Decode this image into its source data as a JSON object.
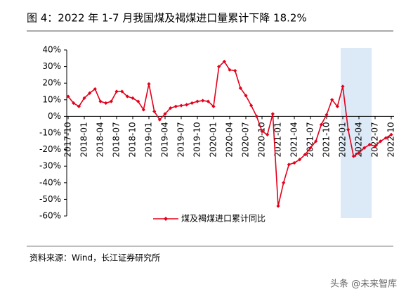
{
  "title": "图 4：2022 年 1-7 月我国煤及褐煤进口量累计下降 18.2%",
  "source": "资料来源：Wind，长江证券研究所",
  "watermark": "头条 @未来智库",
  "chart_data": {
    "type": "line",
    "categories": [
      "2017-10",
      null,
      null,
      "2018-01",
      null,
      null,
      "2018-04",
      null,
      null,
      "2018-07",
      null,
      null,
      "2018-10",
      null,
      null,
      "2019-01",
      null,
      null,
      "2019-04",
      null,
      null,
      "2019-07",
      null,
      null,
      "2019-10",
      null,
      null,
      "2020-01",
      null,
      null,
      "2020-04",
      null,
      null,
      "2020-07",
      null,
      null,
      "2020-10",
      null,
      null,
      "2021-01",
      null,
      null,
      "2021-04",
      null,
      null,
      "2021-07",
      null,
      null,
      "2021-10",
      null,
      null,
      "2022-01",
      null,
      null,
      "2022-04",
      null,
      null,
      "2022-07",
      null,
      null,
      "2022-10"
    ],
    "series": [
      {
        "name": "煤及褐煤进口累计同比",
        "color": "#e3001b",
        "values": [
          12,
          8,
          6,
          11,
          14,
          16.5,
          9,
          8,
          9,
          15,
          15,
          12,
          11,
          9,
          4,
          19.5,
          3,
          -2,
          1.5,
          5,
          6,
          6.5,
          7,
          8,
          9,
          9.5,
          9,
          6,
          30,
          33,
          28,
          27.5,
          17,
          12.5,
          6.5,
          0,
          -9,
          -11,
          1.5,
          -54,
          -40,
          -29,
          -28,
          -26,
          -23,
          -19,
          -15,
          -5,
          1,
          10,
          6,
          18,
          -8,
          -24,
          -22,
          -19,
          -17,
          -18,
          -15,
          -13,
          -11
        ]
      }
    ],
    "ylim": [
      -60,
      40
    ],
    "yticks": [
      {
        "value": -60,
        "label": "-60%"
      },
      {
        "value": -50,
        "label": "-50%"
      },
      {
        "value": -40,
        "label": "-40%"
      },
      {
        "value": -30,
        "label": "-30%"
      },
      {
        "value": -20,
        "label": "-20%"
      },
      {
        "value": -10,
        "label": "-10%"
      },
      {
        "value": 0,
        "label": "0%"
      },
      {
        "value": 10,
        "label": "10%"
      },
      {
        "value": 20,
        "label": "20%"
      },
      {
        "value": 30,
        "label": "30%"
      },
      {
        "value": 40,
        "label": "40%"
      }
    ],
    "highlight": {
      "from": "2022-01",
      "to": "2022-07",
      "color": "#dce9f7"
    },
    "legend": "bottom",
    "grid": false
  }
}
